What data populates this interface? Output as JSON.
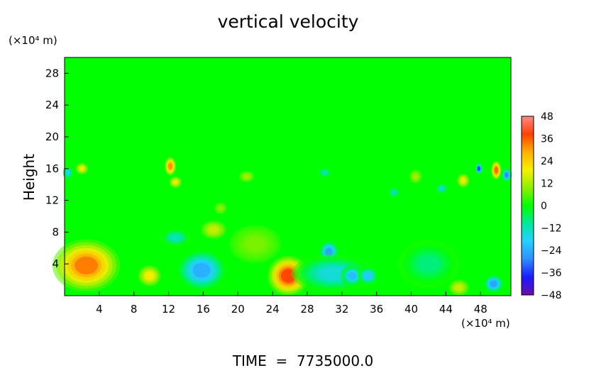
{
  "chart_data": {
    "type": "heatmap",
    "title": "vertical velocity",
    "ylabel": "Height",
    "xlabel": "",
    "x_units": "(×10⁴ m)",
    "y_units": "(×10⁴ m)",
    "footer": "TIME  =  7735000.0",
    "xlim": [
      0,
      51.5
    ],
    "ylim": [
      0,
      30
    ],
    "x_ticks": [
      4,
      8,
      12,
      16,
      20,
      24,
      28,
      32,
      36,
      40,
      44,
      48
    ],
    "y_ticks": [
      4,
      8,
      12,
      16,
      20,
      24,
      28
    ],
    "colorbar": {
      "min": -48,
      "max": 48,
      "ticks": [
        48,
        36,
        24,
        12,
        0,
        -12,
        -24,
        -36,
        -48
      ],
      "stops": [
        "#6a0dad",
        "#1a1aff",
        "#2f8dff",
        "#25d0ff",
        "#00e8a0",
        "#00ff00",
        "#8fef00",
        "#f5f000",
        "#ffb000",
        "#ff4000",
        "#ff8a8a"
      ]
    },
    "background_value": 3,
    "features": [
      {
        "x": 2.5,
        "y": 3.8,
        "sx": 2.6,
        "sy": 2.2,
        "v": 38
      },
      {
        "x": 9.8,
        "y": 2.5,
        "sx": 0.9,
        "sy": 0.9,
        "v": 22
      },
      {
        "x": 15.8,
        "y": 3.2,
        "sx": 2.0,
        "sy": 1.8,
        "v": -28
      },
      {
        "x": 12.8,
        "y": 7.3,
        "sx": 1.2,
        "sy": 0.8,
        "v": -14
      },
      {
        "x": 17.2,
        "y": 8.3,
        "sx": 1.0,
        "sy": 0.8,
        "v": 16
      },
      {
        "x": 22.0,
        "y": 6.5,
        "sx": 2.0,
        "sy": 1.6,
        "v": 9
      },
      {
        "x": 25.8,
        "y": 2.5,
        "sx": 1.6,
        "sy": 1.7,
        "v": 44
      },
      {
        "x": 30.5,
        "y": 5.5,
        "sx": 0.8,
        "sy": 1.0,
        "v": -30
      },
      {
        "x": 31.0,
        "y": 2.8,
        "sx": 3.2,
        "sy": 1.6,
        "v": -18
      },
      {
        "x": 33.2,
        "y": 2.5,
        "sx": 0.9,
        "sy": 0.9,
        "v": -26
      },
      {
        "x": 35.0,
        "y": 2.5,
        "sx": 0.8,
        "sy": 0.8,
        "v": -24
      },
      {
        "x": 42.0,
        "y": 4.0,
        "sx": 2.4,
        "sy": 2.0,
        "v": -9
      },
      {
        "x": 49.5,
        "y": 1.5,
        "sx": 0.8,
        "sy": 0.8,
        "v": -30
      },
      {
        "x": 45.5,
        "y": 1.0,
        "sx": 0.8,
        "sy": 0.7,
        "v": 16
      },
      {
        "x": 12.2,
        "y": 16.3,
        "sx": 0.45,
        "sy": 0.8,
        "v": 36
      },
      {
        "x": 12.8,
        "y": 14.3,
        "sx": 0.5,
        "sy": 0.5,
        "v": 20
      },
      {
        "x": 0.4,
        "y": 15.5,
        "sx": 0.4,
        "sy": 0.6,
        "v": -20
      },
      {
        "x": 2.0,
        "y": 16.0,
        "sx": 0.5,
        "sy": 0.5,
        "v": 20
      },
      {
        "x": 47.8,
        "y": 16.0,
        "sx": 0.3,
        "sy": 0.5,
        "v": -42
      },
      {
        "x": 49.8,
        "y": 15.8,
        "sx": 0.4,
        "sy": 0.8,
        "v": 40
      },
      {
        "x": 51.0,
        "y": 15.2,
        "sx": 0.4,
        "sy": 0.6,
        "v": -34
      },
      {
        "x": 46.0,
        "y": 14.5,
        "sx": 0.5,
        "sy": 0.6,
        "v": 20
      },
      {
        "x": 43.5,
        "y": 13.5,
        "sx": 0.5,
        "sy": 0.5,
        "v": -16
      },
      {
        "x": 30.0,
        "y": 15.5,
        "sx": 0.6,
        "sy": 0.5,
        "v": -12
      },
      {
        "x": 21.0,
        "y": 15.0,
        "sx": 0.6,
        "sy": 0.5,
        "v": 12
      },
      {
        "x": 38.0,
        "y": 13.0,
        "sx": 0.5,
        "sy": 0.5,
        "v": -14
      },
      {
        "x": 18.0,
        "y": 11.0,
        "sx": 0.5,
        "sy": 0.5,
        "v": 10
      },
      {
        "x": 40.5,
        "y": 15.0,
        "sx": 0.5,
        "sy": 0.6,
        "v": 12
      }
    ]
  }
}
